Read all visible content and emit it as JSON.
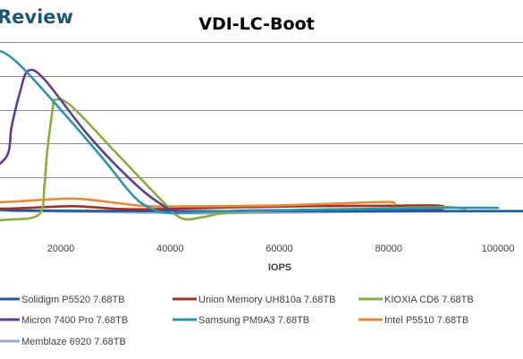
{
  "brand": {
    "text": "Review"
  },
  "chart_data": {
    "type": "line",
    "title": "VDI-LC-Boot",
    "xlabel": "IOPS",
    "ylabel": "",
    "xlim": [
      -10000,
      105000
    ],
    "ylim": [
      0,
      10
    ],
    "x_ticks": [
      20000,
      40000,
      60000,
      80000,
      100000
    ],
    "x_tick_labels": [
      "20000",
      "40000",
      "60000",
      "80000",
      "100000"
    ],
    "y_gridlines": [
      2,
      4,
      6,
      8,
      10
    ],
    "grid": true,
    "legend_position": "bottom",
    "series": [
      {
        "name": "Solidigm P5520 7.68TB",
        "color": "#1f5a96",
        "points": [
          [
            -10000,
            0.2
          ],
          [
            8000,
            0.1
          ],
          [
            10000,
            0.08
          ],
          [
            12000,
            0.05
          ],
          [
            25000,
            0.02
          ],
          [
            35000,
            0.01
          ],
          [
            60000,
            0.01
          ],
          [
            80000,
            0.01
          ],
          [
            100000,
            0.01
          ],
          [
            105000,
            0.01
          ]
        ]
      },
      {
        "name": "Union Memory UH810a 7.68TB",
        "color": "#a0302b",
        "points": [
          [
            -10000,
            0.1
          ],
          [
            10000,
            0.16
          ],
          [
            22000,
            0.3
          ],
          [
            30000,
            0.15
          ],
          [
            36000,
            0.12
          ],
          [
            50000,
            0.22
          ],
          [
            65000,
            0.3
          ],
          [
            80000,
            0.33
          ],
          [
            88000,
            0.35
          ],
          [
            90000,
            0.3
          ]
        ]
      },
      {
        "name": "KIOXIA CD6 7.68TB",
        "color": "#8cac3f",
        "points": [
          [
            -10000,
            0.2
          ],
          [
            -3000,
            0.1
          ],
          [
            5000,
            -0.5
          ],
          [
            10000,
            -0.5
          ],
          [
            16000,
            -0.2
          ],
          [
            17000,
            1.5
          ],
          [
            17500,
            3.5
          ],
          [
            18500,
            6
          ],
          [
            19000,
            6.6
          ],
          [
            22000,
            6.2
          ],
          [
            30000,
            3.5
          ],
          [
            38000,
            0.8
          ],
          [
            42000,
            -0.4
          ],
          [
            46000,
            -0.35
          ],
          [
            50000,
            -0.1
          ],
          [
            60000,
            0.05
          ],
          [
            75000,
            0.15
          ],
          [
            90000,
            0.25
          ],
          [
            94000,
            0.15
          ]
        ]
      },
      {
        "name": "Micron 7400 Pro 7.68TB",
        "color": "#5f4090",
        "points": [
          [
            -10000,
            1.6
          ],
          [
            -6000,
            1.4
          ],
          [
            5000,
            2.2
          ],
          [
            10000,
            3.2
          ],
          [
            11000,
            5.0
          ],
          [
            12500,
            7.0
          ],
          [
            14000,
            8.3
          ],
          [
            17000,
            7.8
          ],
          [
            25000,
            4.5
          ],
          [
            33000,
            1.8
          ],
          [
            38000,
            0.5
          ],
          [
            42000,
            0
          ],
          [
            55000,
            0.05
          ],
          [
            70000,
            0.1
          ],
          [
            85000,
            0.15
          ],
          [
            90000,
            0.05
          ]
        ]
      },
      {
        "name": "Samsung PM9A3 7.68TB",
        "color": "#2b94ad",
        "points": [
          [
            -10000,
            0.6
          ],
          [
            0,
            0.6
          ],
          [
            2000,
            1.5
          ],
          [
            2500,
            3.5
          ],
          [
            3000,
            6.5
          ],
          [
            5000,
            8.8
          ],
          [
            8000,
            9.5
          ],
          [
            12000,
            8.8
          ],
          [
            20000,
            6.0
          ],
          [
            28000,
            3.0
          ],
          [
            33000,
            1.0
          ],
          [
            36000,
            0.25
          ],
          [
            40000,
            -0.1
          ],
          [
            50000,
            0.0
          ],
          [
            70000,
            0.1
          ],
          [
            90000,
            0.2
          ],
          [
            100000,
            0.2
          ]
        ]
      },
      {
        "name": "Intel P5510 7.68TB",
        "color": "#e38a3c",
        "points": [
          [
            -10000,
            0.3
          ],
          [
            10000,
            0.55
          ],
          [
            22000,
            0.75
          ],
          [
            30000,
            0.5
          ],
          [
            36000,
            0.3
          ],
          [
            48000,
            0.3
          ],
          [
            60000,
            0.35
          ],
          [
            70000,
            0.45
          ],
          [
            80000,
            0.55
          ],
          [
            81000,
            0.4
          ]
        ]
      },
      {
        "name": "Memblaze 6920 7.68TB",
        "color": "#9cacd4",
        "points": [
          [
            -10000,
            0.15
          ],
          [
            15000,
            0.0
          ],
          [
            30000,
            -0.05
          ],
          [
            45000,
            -0.12
          ],
          [
            60000,
            -0.08
          ],
          [
            80000,
            -0.02
          ],
          [
            100000,
            0.0
          ],
          [
            105000,
            0.0
          ]
        ]
      }
    ]
  }
}
